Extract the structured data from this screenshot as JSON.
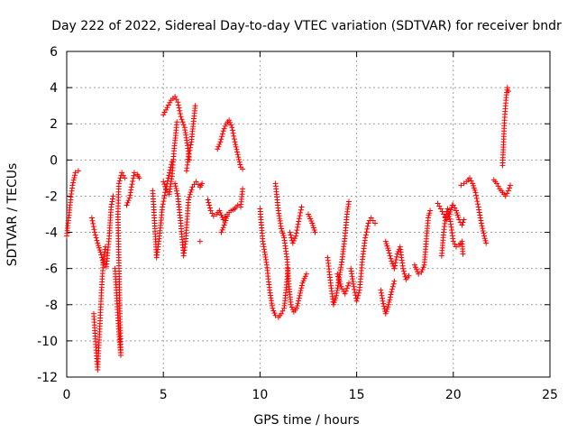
{
  "chart_data": {
    "type": "scatter",
    "title": "Day 222 of 2022, Sidereal Day-to-day VTEC variation (SDTVAR) for receiver bndr",
    "xlabel": "GPS time / hours",
    "ylabel": "SDTVAR / TECUs",
    "xlim": [
      0,
      25
    ],
    "ylim": [
      -12,
      6
    ],
    "xticks": [
      0,
      5,
      10,
      15,
      20,
      25
    ],
    "yticks": [
      -12,
      -10,
      -8,
      -6,
      -4,
      -2,
      0,
      2,
      4,
      6
    ],
    "grid": true,
    "marker": "+",
    "color": "#ff0000",
    "series": [
      {
        "name": "seg1",
        "points": [
          [
            0.0,
            -4.2
          ],
          [
            0.1,
            -3.2
          ],
          [
            0.2,
            -2.2
          ],
          [
            0.3,
            -1.4
          ],
          [
            0.45,
            -0.7
          ],
          [
            0.6,
            -0.6
          ]
        ]
      },
      {
        "name": "seg2",
        "points": [
          [
            1.3,
            -3.2
          ],
          [
            1.45,
            -4.0
          ],
          [
            1.6,
            -4.6
          ],
          [
            1.75,
            -5.1
          ],
          [
            1.9,
            -5.7
          ],
          [
            2.05,
            -5.9
          ],
          [
            2.2,
            -4.2
          ],
          [
            2.3,
            -2.6
          ],
          [
            2.4,
            -2.0
          ]
        ]
      },
      {
        "name": "seg3",
        "points": [
          [
            1.4,
            -8.5
          ],
          [
            1.5,
            -10.2
          ],
          [
            1.6,
            -11.6
          ],
          [
            1.7,
            -9.5
          ],
          [
            1.8,
            -7.2
          ],
          [
            1.9,
            -5.5
          ],
          [
            2.0,
            -4.8
          ]
        ]
      },
      {
        "name": "seg4",
        "points": [
          [
            2.5,
            -6.0
          ],
          [
            2.6,
            -7.8
          ],
          [
            2.7,
            -9.5
          ],
          [
            2.8,
            -10.8
          ],
          [
            2.75,
            -8.5
          ],
          [
            2.7,
            -5.7
          ],
          [
            2.65,
            -3.0
          ],
          [
            2.7,
            -1.3
          ],
          [
            2.85,
            -0.7
          ],
          [
            3.0,
            -1.0
          ]
        ]
      },
      {
        "name": "seg5",
        "points": [
          [
            3.1,
            -2.5
          ],
          [
            3.25,
            -2.1
          ],
          [
            3.35,
            -1.5
          ],
          [
            3.5,
            -0.7
          ],
          [
            3.65,
            -0.8
          ],
          [
            3.75,
            -1.0
          ]
        ]
      },
      {
        "name": "seg6",
        "points": [
          [
            4.45,
            -1.7
          ],
          [
            4.55,
            -3.5
          ],
          [
            4.65,
            -5.4
          ],
          [
            4.8,
            -4.2
          ],
          [
            4.95,
            -2.6
          ],
          [
            5.1,
            -1.8
          ],
          [
            5.25,
            -1.0
          ],
          [
            5.45,
            -0.1
          ]
        ]
      },
      {
        "name": "seg7",
        "points": [
          [
            5.0,
            2.5
          ],
          [
            5.2,
            2.9
          ],
          [
            5.4,
            3.3
          ],
          [
            5.6,
            3.5
          ],
          [
            5.75,
            3.2
          ],
          [
            5.9,
            2.4
          ],
          [
            6.1,
            1.8
          ],
          [
            6.25,
            0.8
          ],
          [
            6.35,
            0.0
          ]
        ]
      },
      {
        "name": "seg8",
        "points": [
          [
            5.0,
            -1.2
          ],
          [
            5.15,
            -1.6
          ],
          [
            5.3,
            -1.9
          ],
          [
            5.45,
            -0.9
          ],
          [
            5.55,
            0.5
          ],
          [
            5.65,
            1.5
          ],
          [
            5.7,
            2.1
          ]
        ]
      },
      {
        "name": "seg9",
        "points": [
          [
            5.6,
            -1.3
          ],
          [
            5.75,
            -2.0
          ],
          [
            5.9,
            -3.5
          ],
          [
            6.05,
            -5.3
          ],
          [
            6.15,
            -4.5
          ],
          [
            6.3,
            -2.2
          ],
          [
            6.5,
            -1.5
          ],
          [
            6.7,
            -1.2
          ],
          [
            6.9,
            -1.5
          ],
          [
            7.0,
            -1.3
          ]
        ]
      },
      {
        "name": "seg10",
        "points": [
          [
            6.2,
            -0.6
          ],
          [
            6.3,
            0.2
          ],
          [
            6.45,
            1.0
          ],
          [
            6.55,
            2.0
          ],
          [
            6.65,
            3.0
          ]
        ]
      },
      {
        "name": "seg11",
        "points": [
          [
            6.9,
            -4.5
          ]
        ]
      },
      {
        "name": "seg12",
        "points": [
          [
            7.3,
            -2.2
          ],
          [
            7.45,
            -2.8
          ],
          [
            7.6,
            -3.1
          ],
          [
            7.75,
            -3.0
          ],
          [
            7.9,
            -2.8
          ],
          [
            8.1,
            -3.3
          ],
          [
            8.3,
            -3.0
          ],
          [
            8.5,
            -2.8
          ],
          [
            8.7,
            -2.7
          ],
          [
            8.85,
            -2.5
          ],
          [
            9.0,
            -2.6
          ],
          [
            9.1,
            -1.6
          ]
        ]
      },
      {
        "name": "seg13",
        "points": [
          [
            8.0,
            -4.0
          ],
          [
            8.15,
            -3.6
          ],
          [
            8.3,
            -3.1
          ]
        ]
      },
      {
        "name": "seg14",
        "points": [
          [
            7.8,
            0.6
          ],
          [
            7.95,
            1.0
          ],
          [
            8.1,
            1.6
          ],
          [
            8.25,
            2.0
          ],
          [
            8.4,
            2.2
          ],
          [
            8.55,
            1.8
          ],
          [
            8.7,
            1.0
          ],
          [
            8.85,
            0.3
          ],
          [
            9.0,
            -0.4
          ],
          [
            9.1,
            -0.5
          ]
        ]
      },
      {
        "name": "seg15",
        "points": [
          [
            10.0,
            -2.7
          ],
          [
            10.15,
            -4.5
          ],
          [
            10.35,
            -5.8
          ],
          [
            10.5,
            -7.2
          ],
          [
            10.65,
            -8.2
          ],
          [
            10.8,
            -8.6
          ],
          [
            10.95,
            -8.7
          ],
          [
            11.1,
            -8.5
          ],
          [
            11.25,
            -8.2
          ],
          [
            11.35,
            -7.2
          ],
          [
            11.45,
            -6.0
          ]
        ]
      },
      {
        "name": "seg16",
        "points": [
          [
            10.8,
            -1.3
          ],
          [
            10.95,
            -2.8
          ],
          [
            11.1,
            -3.8
          ],
          [
            11.25,
            -4.3
          ],
          [
            11.4,
            -5.5
          ],
          [
            11.5,
            -7.0
          ],
          [
            11.6,
            -8.0
          ],
          [
            11.75,
            -8.4
          ],
          [
            11.9,
            -8.2
          ],
          [
            12.05,
            -7.5
          ],
          [
            12.2,
            -6.8
          ],
          [
            12.4,
            -6.3
          ]
        ]
      },
      {
        "name": "seg17",
        "points": [
          [
            11.55,
            -4.0
          ],
          [
            11.7,
            -4.6
          ],
          [
            11.85,
            -4.2
          ],
          [
            12.0,
            -3.4
          ],
          [
            12.15,
            -2.6
          ]
        ]
      },
      {
        "name": "seg18",
        "points": [
          [
            12.5,
            -3.0
          ],
          [
            12.7,
            -3.5
          ],
          [
            12.85,
            -4.0
          ]
        ]
      },
      {
        "name": "seg19",
        "points": [
          [
            13.5,
            -5.4
          ],
          [
            13.65,
            -6.8
          ],
          [
            13.8,
            -8.0
          ],
          [
            13.95,
            -7.5
          ],
          [
            14.1,
            -6.5
          ],
          [
            14.25,
            -5.5
          ],
          [
            14.4,
            -4.2
          ],
          [
            14.5,
            -3.0
          ],
          [
            14.6,
            -2.3
          ]
        ]
      },
      {
        "name": "seg20",
        "points": [
          [
            14.0,
            -6.3
          ],
          [
            14.2,
            -7.0
          ],
          [
            14.4,
            -7.4
          ],
          [
            14.6,
            -6.8
          ]
        ]
      },
      {
        "name": "seg21",
        "points": [
          [
            14.7,
            -6.0
          ],
          [
            14.85,
            -7.0
          ],
          [
            15.0,
            -7.8
          ],
          [
            15.15,
            -7.2
          ],
          [
            15.3,
            -5.5
          ],
          [
            15.45,
            -4.3
          ],
          [
            15.6,
            -3.5
          ],
          [
            15.75,
            -3.2
          ],
          [
            15.95,
            -3.5
          ]
        ]
      },
      {
        "name": "seg22",
        "points": [
          [
            16.25,
            -7.2
          ],
          [
            16.35,
            -7.8
          ],
          [
            16.5,
            -8.5
          ],
          [
            16.65,
            -8.0
          ],
          [
            16.8,
            -7.3
          ],
          [
            16.95,
            -6.7
          ]
        ]
      },
      {
        "name": "seg23",
        "points": [
          [
            16.5,
            -4.5
          ],
          [
            16.65,
            -5.0
          ],
          [
            16.8,
            -5.6
          ],
          [
            16.95,
            -6.0
          ],
          [
            17.1,
            -5.2
          ],
          [
            17.25,
            -4.8
          ],
          [
            17.4,
            -6.0
          ],
          [
            17.55,
            -6.6
          ],
          [
            17.7,
            -6.4
          ]
        ]
      },
      {
        "name": "seg24",
        "points": [
          [
            18.0,
            -5.8
          ],
          [
            18.2,
            -6.3
          ],
          [
            18.35,
            -6.2
          ],
          [
            18.5,
            -5.8
          ],
          [
            18.6,
            -4.5
          ],
          [
            18.7,
            -3.2
          ],
          [
            18.8,
            -2.8
          ]
        ]
      },
      {
        "name": "seg25",
        "points": [
          [
            19.2,
            -2.4
          ],
          [
            19.35,
            -2.7
          ],
          [
            19.5,
            -3.0
          ],
          [
            19.65,
            -3.3
          ],
          [
            19.8,
            -3.0
          ],
          [
            19.95,
            -2.5
          ]
        ]
      },
      {
        "name": "seg26",
        "points": [
          [
            19.4,
            -5.3
          ],
          [
            19.5,
            -4.0
          ],
          [
            19.6,
            -3.2
          ],
          [
            19.7,
            -2.7
          ],
          [
            19.85,
            -3.4
          ],
          [
            20.0,
            -4.5
          ],
          [
            20.15,
            -4.8
          ],
          [
            20.3,
            -4.7
          ],
          [
            20.45,
            -4.5
          ],
          [
            20.5,
            -5.2
          ]
        ]
      },
      {
        "name": "seg27",
        "points": [
          [
            20.0,
            -2.5
          ],
          [
            20.15,
            -2.8
          ],
          [
            20.3,
            -3.3
          ],
          [
            20.45,
            -3.6
          ],
          [
            20.55,
            -3.3
          ]
        ]
      },
      {
        "name": "seg28",
        "points": [
          [
            20.4,
            -1.4
          ],
          [
            20.55,
            -1.3
          ],
          [
            20.7,
            -1.2
          ],
          [
            20.85,
            -1.0
          ],
          [
            21.0,
            -1.3
          ],
          [
            21.15,
            -1.8
          ],
          [
            21.3,
            -2.6
          ],
          [
            21.45,
            -3.5
          ],
          [
            21.6,
            -4.2
          ],
          [
            21.7,
            -4.6
          ]
        ]
      },
      {
        "name": "seg29",
        "points": [
          [
            22.1,
            -1.1
          ],
          [
            22.25,
            -1.3
          ],
          [
            22.4,
            -1.6
          ],
          [
            22.55,
            -1.8
          ],
          [
            22.7,
            -2.0
          ],
          [
            22.85,
            -1.7
          ],
          [
            22.95,
            -1.4
          ]
        ]
      },
      {
        "name": "seg30",
        "points": [
          [
            22.55,
            -0.3
          ],
          [
            22.6,
            1.0
          ],
          [
            22.65,
            2.2
          ],
          [
            22.7,
            3.0
          ],
          [
            22.75,
            3.6
          ],
          [
            22.8,
            4.0
          ],
          [
            22.85,
            3.8
          ]
        ]
      }
    ]
  }
}
